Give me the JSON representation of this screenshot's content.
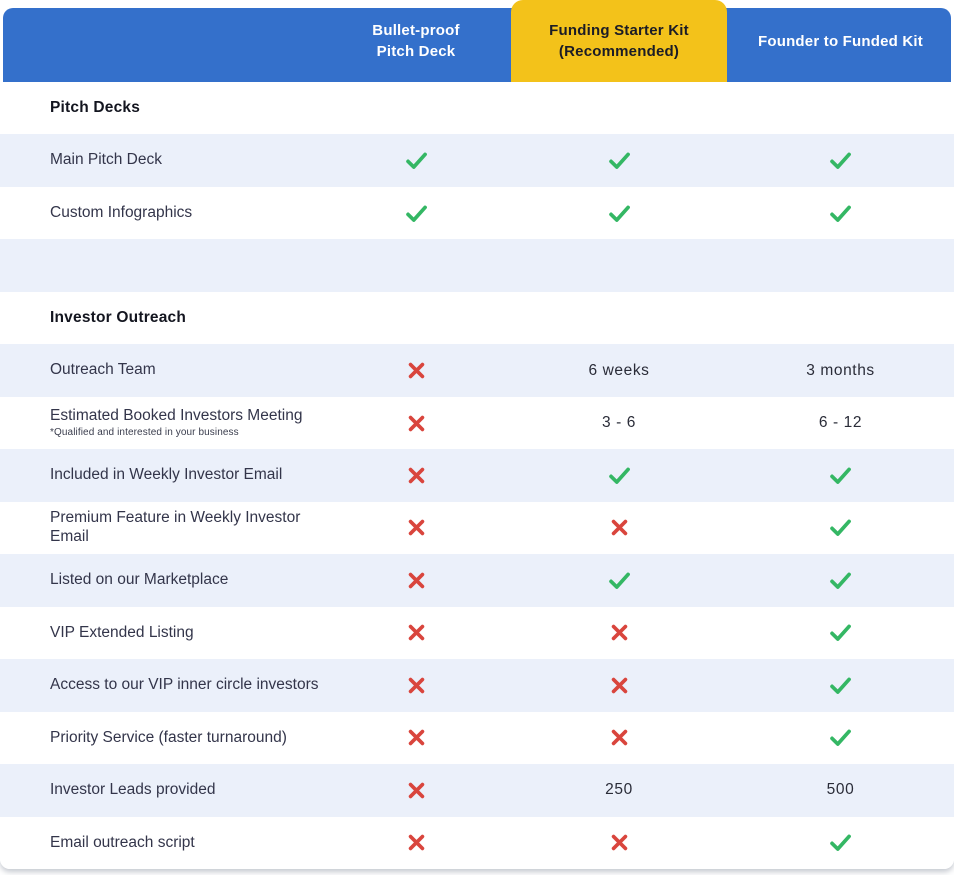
{
  "theme": {
    "header_blue": "#3470CB",
    "highlight_yellow": "#F3C21A",
    "row_alt_bg": "#EBF0FA",
    "check_green": "#34B764",
    "cross_red": "#D9453D"
  },
  "table": {
    "columns": [
      {
        "label": "Bullet-proof\nPitch Deck",
        "highlighted": false
      },
      {
        "label": "Funding Starter Kit\n(Recommended)",
        "highlighted": true
      },
      {
        "label": "Founder to Funded Kit",
        "highlighted": false
      }
    ],
    "sections": [
      {
        "title": "Pitch Decks",
        "rows": [
          {
            "label": "Main Pitch Deck",
            "values": [
              "check",
              "check",
              "check"
            ]
          },
          {
            "label": "Custom Infographics",
            "values": [
              "check",
              "check",
              "check"
            ]
          }
        ]
      },
      {
        "spacer": true
      },
      {
        "title": "Investor Outreach",
        "rows": [
          {
            "label": "Outreach Team",
            "values": [
              "cross",
              "6 weeks",
              "3 months"
            ]
          },
          {
            "label": "Estimated Booked Investors Meeting",
            "sublabel": "*Qualified and interested in your business",
            "values": [
              "cross",
              "3 - 6",
              "6 - 12"
            ]
          },
          {
            "label": "Included in Weekly Investor Email",
            "values": [
              "cross",
              "check",
              "check"
            ]
          },
          {
            "label": "Premium Feature in Weekly Investor Email",
            "values": [
              "cross",
              "cross",
              "check"
            ]
          },
          {
            "label": "Listed on our Marketplace",
            "values": [
              "cross",
              "check",
              "check"
            ]
          },
          {
            "label": "VIP Extended Listing",
            "values": [
              "cross",
              "cross",
              "check"
            ]
          },
          {
            "label": "Access to our VIP inner circle investors",
            "values": [
              "cross",
              "cross",
              "check"
            ]
          },
          {
            "label": "Priority Service (faster turnaround)",
            "values": [
              "cross",
              "cross",
              "check"
            ]
          },
          {
            "label": "Investor Leads provided",
            "values": [
              "cross",
              "250",
              "500"
            ]
          },
          {
            "label": "Email outreach script",
            "values": [
              "cross",
              "cross",
              "check"
            ]
          }
        ]
      }
    ]
  }
}
